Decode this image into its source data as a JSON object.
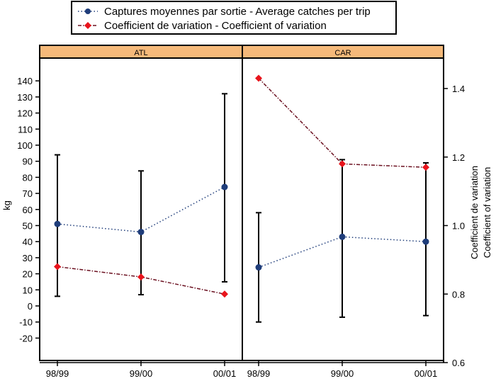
{
  "chart_data": {
    "type": "line",
    "categories": [
      "98/99",
      "99/00",
      "00/01"
    ],
    "panels": [
      {
        "name": "ATL",
        "mean_kg": [
          51,
          46,
          74
        ],
        "error_low_kg": [
          6,
          7,
          15
        ],
        "error_high_kg": [
          94,
          84,
          132
        ],
        "cv": [
          0.88,
          0.85,
          0.8
        ]
      },
      {
        "name": "CAR",
        "mean_kg": [
          24,
          43,
          40
        ],
        "error_low_kg": [
          -10,
          -7,
          -6
        ],
        "error_high_kg": [
          58,
          91,
          89
        ],
        "cv": [
          1.43,
          1.18,
          1.17
        ]
      }
    ],
    "left_axis": {
      "label": "kg",
      "ticks": [
        "140",
        "130",
        "120",
        "110",
        "100",
        "90",
        "80",
        "70",
        "60",
        "50",
        "40",
        "30",
        "20",
        "10",
        "0",
        "-10",
        "-20"
      ],
      "range": [
        -29,
        154
      ]
    },
    "right_axis": {
      "labels": [
        "Coefficient de variation",
        "Coefficient of variation"
      ],
      "ticks": [
        "1.4",
        "1.2",
        "1.0",
        "0.8",
        "0.6"
      ],
      "range": [
        0.6,
        1.5
      ]
    },
    "legend": [
      {
        "label": "Captures moyennes par sortie - Average catches per trip",
        "color": "#1f3d7a",
        "marker": "circle",
        "line": "dotted"
      },
      {
        "label": "Coefficient de variation - Coefficient of variation",
        "color": "#e8141c",
        "line_color": "#6b1020",
        "marker": "diamond",
        "line": "dash-dot"
      }
    ],
    "legend_placement": "top-center",
    "strip_color": "#f5b97a"
  }
}
